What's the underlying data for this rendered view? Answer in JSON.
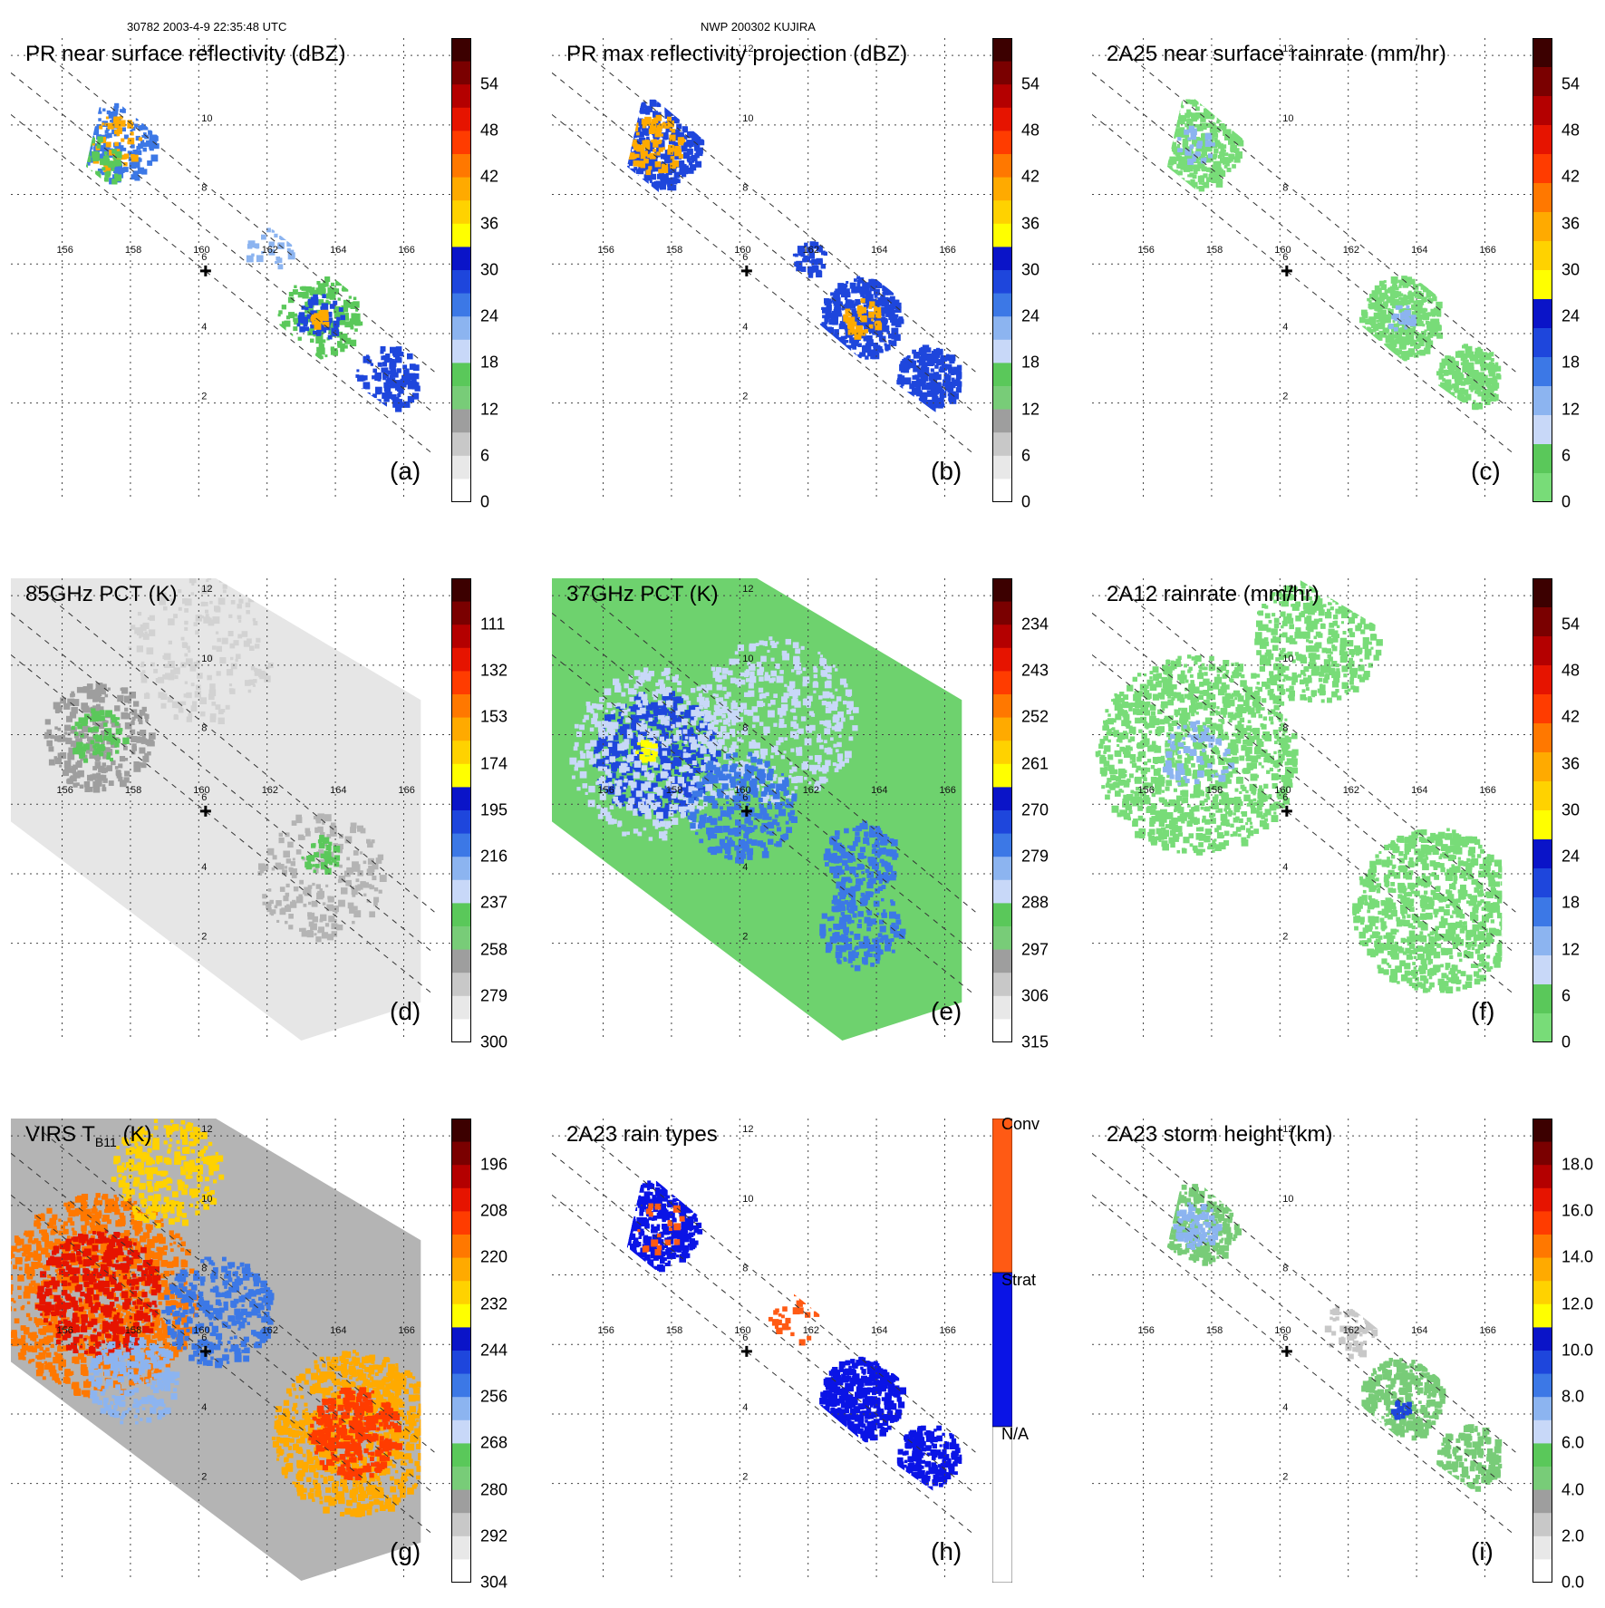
{
  "header": {
    "left": "30782 2003-4-9 22:35:48 UTC",
    "center": "NWP 200302 KUJIRA"
  },
  "lon_labels": [
    "156",
    "158",
    "160",
    "162",
    "164",
    "166"
  ],
  "lat_labels": [
    "12",
    "10",
    "8",
    "6",
    "4",
    "2"
  ],
  "panels": [
    {
      "id": "a",
      "title": "PR near surface reflectivity (dBZ)",
      "label": "(a)",
      "kind": "swath",
      "fill": "sparse",
      "colorbar": [
        "54",
        "48",
        "42",
        "36",
        "30",
        "24",
        "18",
        "12",
        "6",
        "0"
      ],
      "cb": "dbz"
    },
    {
      "id": "b",
      "title": "PR max reflectivity projection (dBZ)",
      "label": "(b)",
      "kind": "swath",
      "fill": "dense",
      "colorbar": [
        "54",
        "48",
        "42",
        "36",
        "30",
        "24",
        "18",
        "12",
        "6",
        "0"
      ],
      "cb": "dbz"
    },
    {
      "id": "c",
      "title": "2A25 near surface rainrate (mm/hr)",
      "label": "(c)",
      "kind": "swath",
      "fill": "green",
      "colorbar": [
        "54",
        "48",
        "42",
        "36",
        "30",
        "24",
        "18",
        "12",
        "6",
        "0"
      ],
      "cb": "rain"
    },
    {
      "id": "d",
      "title": "85GHz PCT (K)",
      "label": "(d)",
      "kind": "wide",
      "fill": "gray",
      "colorbar": [
        "111",
        "132",
        "153",
        "174",
        "195",
        "216",
        "237",
        "258",
        "279",
        "300"
      ],
      "cb": "pct"
    },
    {
      "id": "e",
      "title": "37GHz PCT (K)",
      "label": "(e)",
      "kind": "wide",
      "fill": "pct37",
      "colorbar": [
        "234",
        "243",
        "252",
        "261",
        "270",
        "279",
        "288",
        "297",
        "306",
        "315"
      ],
      "cb": "pct"
    },
    {
      "id": "f",
      "title": "2A12 rainrate (mm/hr)",
      "label": "(f)",
      "kind": "wide",
      "fill": "rain12",
      "colorbar": [
        "54",
        "48",
        "42",
        "36",
        "30",
        "24",
        "18",
        "12",
        "6",
        "0"
      ],
      "cb": "rain"
    },
    {
      "id": "g",
      "title": "VIRS T",
      "title_sub": "B11",
      "title_tail": " (K)",
      "label": "(g)",
      "kind": "wide",
      "fill": "virs",
      "colorbar": [
        "196",
        "208",
        "220",
        "232",
        "244",
        "256",
        "268",
        "280",
        "292",
        "304"
      ],
      "cb": "virs"
    },
    {
      "id": "h",
      "title": "2A23 rain types",
      "label": "(h)",
      "kind": "swath",
      "fill": "types",
      "colorbar": [
        "Conv",
        "Strat",
        "N/A"
      ],
      "cb": "types"
    },
    {
      "id": "i",
      "title": "2A23 storm height (km)",
      "label": "(i)",
      "kind": "swath",
      "fill": "height",
      "colorbar": [
        "18.0",
        "16.0",
        "14.0",
        "12.0",
        "10.0",
        "8.0",
        "6.0",
        "4.0",
        "2.0",
        "0.0"
      ],
      "cb": "height"
    }
  ],
  "colors": {
    "dbz": [
      "#ffffff",
      "#e8e8e8",
      "#c8c8c8",
      "#9e9e9e",
      "#78cc78",
      "#5ac85a",
      "#c8d8f8",
      "#8cb4f0",
      "#3c78e6",
      "#1e46dc",
      "#0a14c8",
      "#ffff00",
      "#ffd200",
      "#ffaa00",
      "#ff7800",
      "#ff3c00",
      "#e61400",
      "#b40000",
      "#7a0000",
      "#3c0000"
    ],
    "rain": [
      "#78dc78",
      "#5ac85a",
      "#c8d8f8",
      "#8cb4f0",
      "#3c78e6",
      "#1e46dc",
      "#0a14c8",
      "#ffff00",
      "#ffd200",
      "#ffaa00",
      "#ff7800",
      "#ff3c00",
      "#e61400",
      "#b40000",
      "#7a0000",
      "#3c0000"
    ],
    "pct": [
      "#ffffff",
      "#e8e8e8",
      "#c8c8c8",
      "#9e9e9e",
      "#78cc78",
      "#5ac85a",
      "#c8d8f8",
      "#8cb4f0",
      "#3c78e6",
      "#1e46dc",
      "#0a14c8",
      "#ffff00",
      "#ffd200",
      "#ffaa00",
      "#ff7800",
      "#ff3c00",
      "#e61400",
      "#b40000",
      "#7a0000",
      "#3c0000"
    ],
    "virs": [
      "#ffffff",
      "#e8e8e8",
      "#c8c8c8",
      "#9e9e9e",
      "#78cc78",
      "#5ac85a",
      "#c8d8f8",
      "#8cb4f0",
      "#3c78e6",
      "#1e46dc",
      "#0a14c8",
      "#ffff00",
      "#ffd200",
      "#ffaa00",
      "#ff7800",
      "#ff3c00",
      "#e61400",
      "#b40000",
      "#7a0000",
      "#3c0000"
    ],
    "height": [
      "#ffffff",
      "#e8e8e8",
      "#c8c8c8",
      "#9e9e9e",
      "#78cc78",
      "#5ac85a",
      "#c8d8f8",
      "#8cb4f0",
      "#3c78e6",
      "#1e46dc",
      "#0a14c8",
      "#ffff00",
      "#ffd200",
      "#ffaa00",
      "#ff7800",
      "#ff3c00",
      "#e61400",
      "#b40000",
      "#7a0000",
      "#3c0000"
    ],
    "types": [
      "#ffffff",
      "#0a14e6",
      "#ff5a14"
    ]
  }
}
